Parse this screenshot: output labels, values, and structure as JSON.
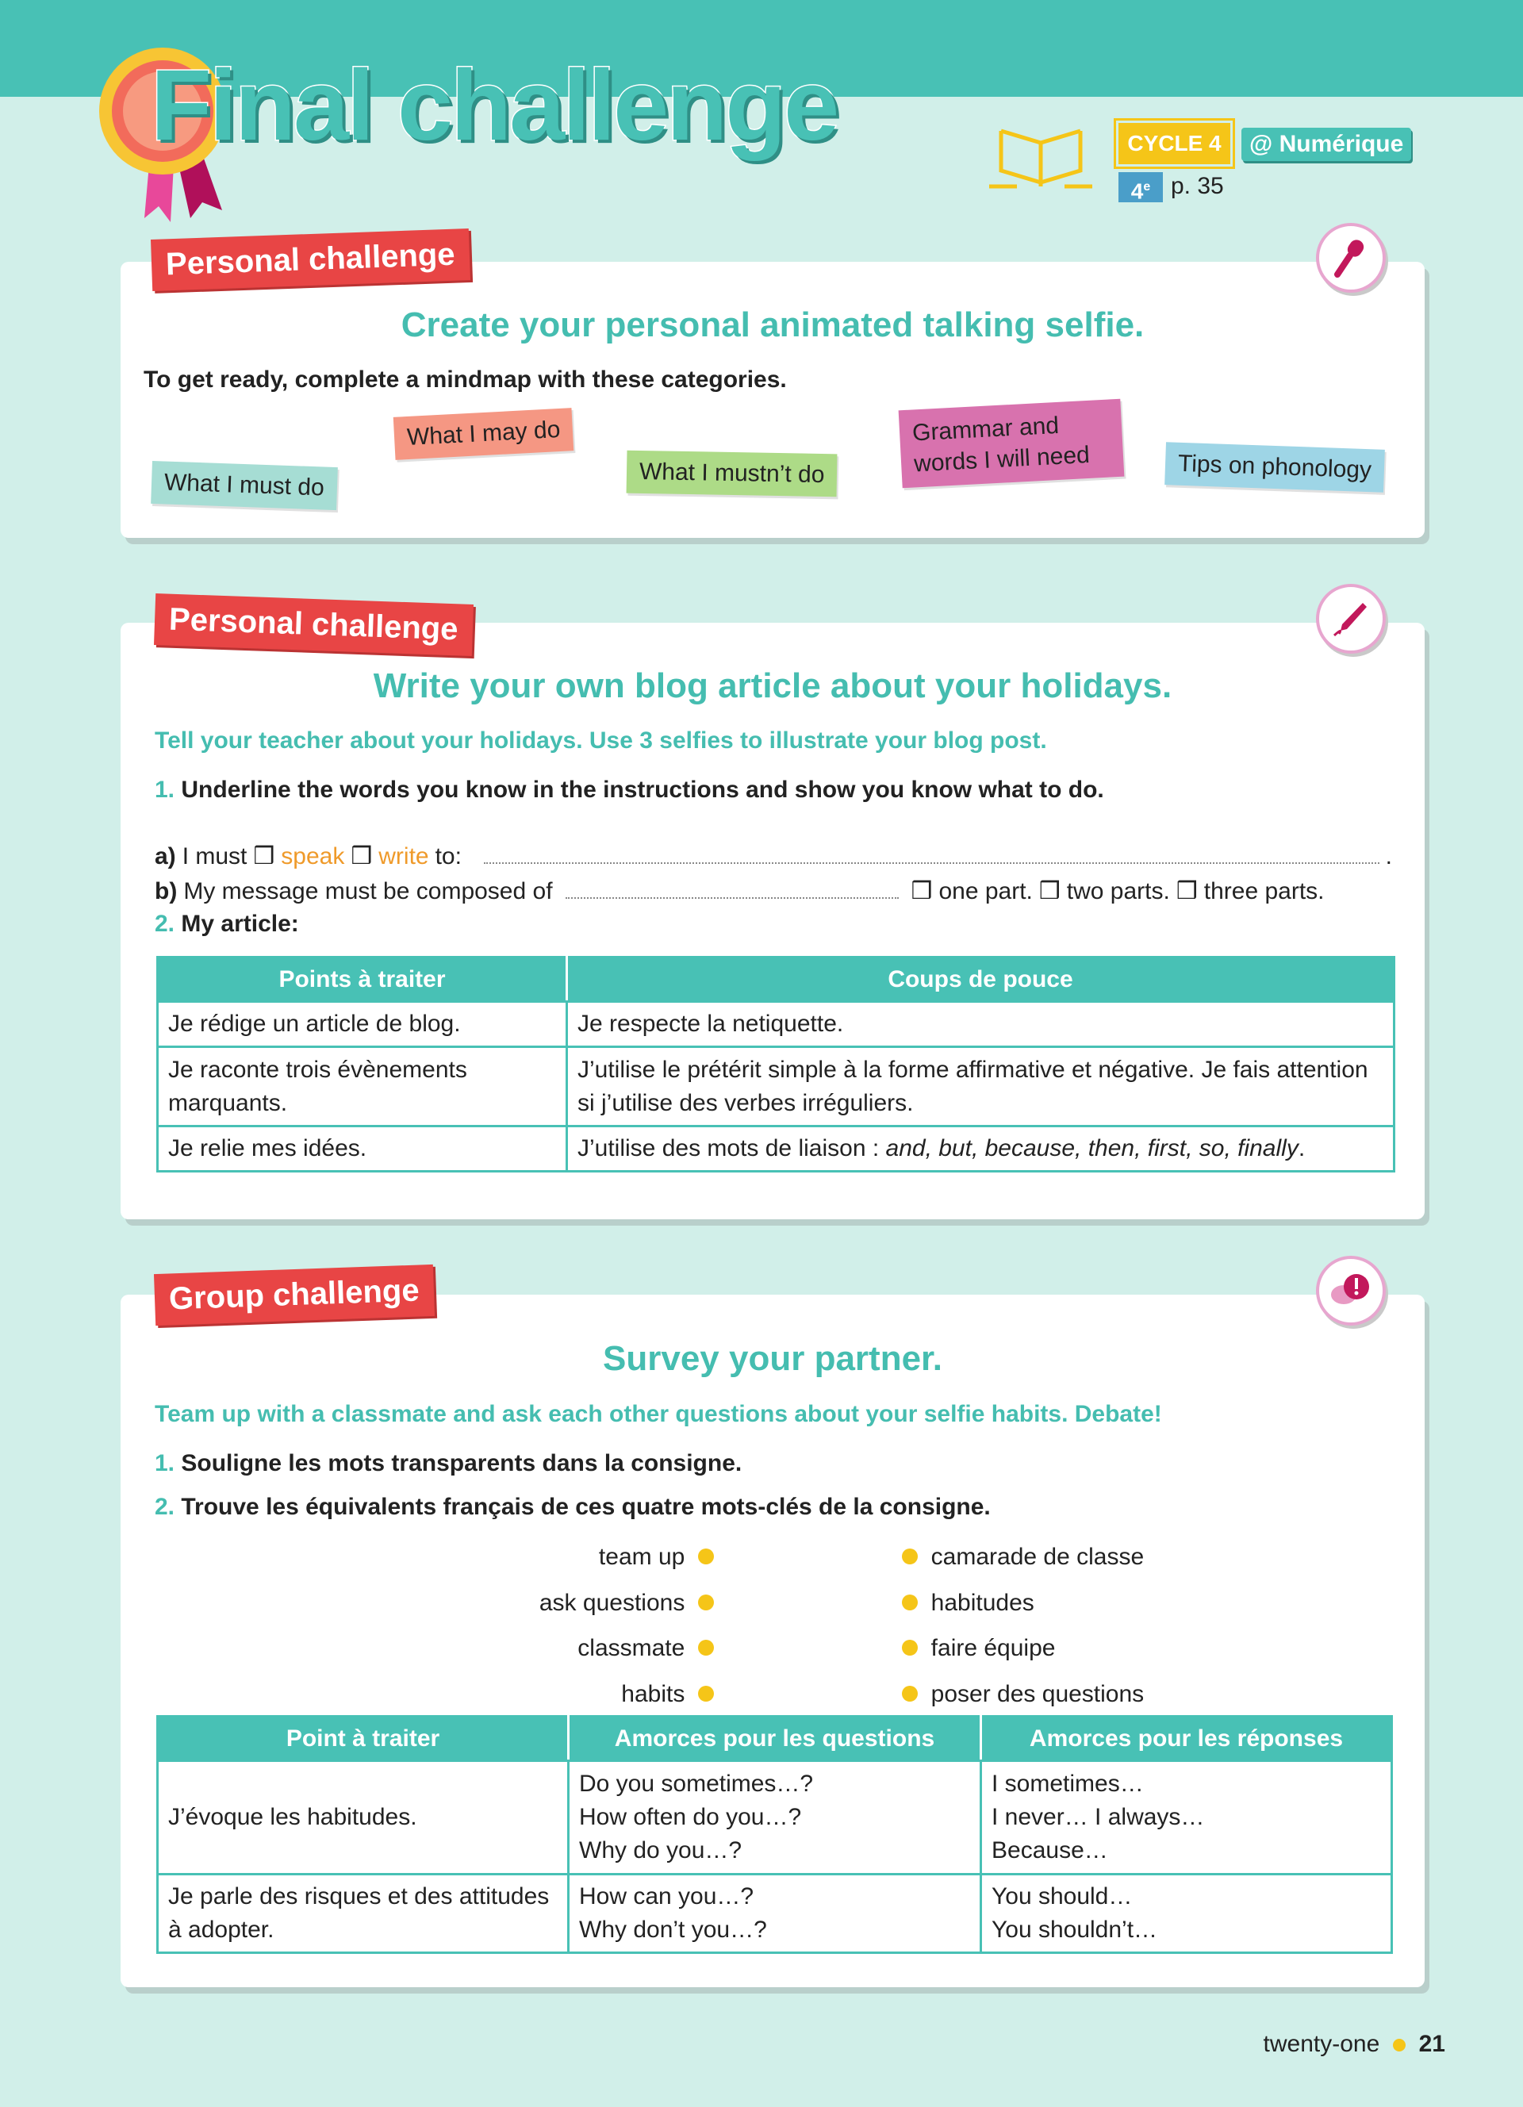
{
  "header": {
    "title": "Final challenge",
    "cycle": "CYCLE 4",
    "numerique": "@ Numérique",
    "grade": "4",
    "grade_sup": "e",
    "page_ref": "p. 35"
  },
  "colors": {
    "teal": "#48c1b5",
    "background": "#d1efe9",
    "label_red": "#e84545",
    "accent_yellow": "#f5c518"
  },
  "card1": {
    "label": "Personal challenge",
    "icon": "microphone-icon",
    "title": "Create your personal animated talking selfie.",
    "instruction": "To get ready, complete a mindmap with these categories.",
    "notes": [
      "What I must do",
      "What I may do",
      "What I mustn’t do",
      "Grammar and words I will need",
      "Tips on phonology"
    ]
  },
  "card2": {
    "label": "Personal challenge",
    "icon": "pen-icon",
    "title": "Write your own blog article about your holidays.",
    "intro": "Tell your teacher about your holidays. Use 3 selfies to illustrate your blog post.",
    "q1_num": "1.",
    "q1": "Underline the words you know in the instructions and show you know what to do.",
    "a_prefix": "a)",
    "a_text": "I must",
    "a_opt1": "speak",
    "a_opt2": "write",
    "a_to": "to:",
    "b_prefix": "b)",
    "b_text": "My message must be composed of",
    "b_opt1": "one part.",
    "b_opt2": "two parts.",
    "b_opt3": "three parts.",
    "q2_num": "2.",
    "q2": "My article:",
    "table": {
      "headers": [
        "Points à traiter",
        "Coups de pouce"
      ],
      "rows": [
        [
          "Je rédige un article de blog.",
          "Je respecte la netiquette."
        ],
        [
          "Je raconte trois évènements marquants.",
          "J’utilise le prétérit simple à la forme affirmative et négative. Je fais attention si j’utilise des verbes irréguliers."
        ],
        [
          "Je relie mes idées.",
          "J’utilise des mots de liaison : "
        ]
      ],
      "row3_italic": "and, but, because, then, first, so, finally",
      "row3_end": "."
    }
  },
  "card3": {
    "label": "Group challenge",
    "icon": "speech-bubble-exclamation-icon",
    "title": "Survey your partner.",
    "intro": "Team up with a classmate and ask each other questions about your selfie habits. Debate!",
    "q1_num": "1.",
    "q1": "Souligne les mots transparents dans la consigne.",
    "q2_num": "2.",
    "q2": "Trouve les équivalents français de ces quatre mots-clés de la consigne.",
    "left_words": [
      "team up",
      "ask questions",
      "classmate",
      "habits"
    ],
    "right_words": [
      "camarade de classe",
      "habitudes",
      "faire équipe",
      "poser des questions"
    ],
    "table": {
      "headers": [
        "Point à traiter",
        "Amorces pour les questions",
        "Amorces pour les réponses"
      ],
      "rows": [
        [
          "J’évoque les habitudes.",
          "Do you sometimes…?\nHow often do you…?\nWhy do you…?",
          "I sometimes…\nI never… I always…\nBecause…"
        ],
        [
          "Je parle des risques et des attitudes à adopter.",
          "How can you…?\nWhy don’t you…?",
          "You should…\nYou shouldn’t…"
        ]
      ]
    }
  },
  "footer": {
    "page_word": "twenty-one",
    "page_number": "21"
  }
}
